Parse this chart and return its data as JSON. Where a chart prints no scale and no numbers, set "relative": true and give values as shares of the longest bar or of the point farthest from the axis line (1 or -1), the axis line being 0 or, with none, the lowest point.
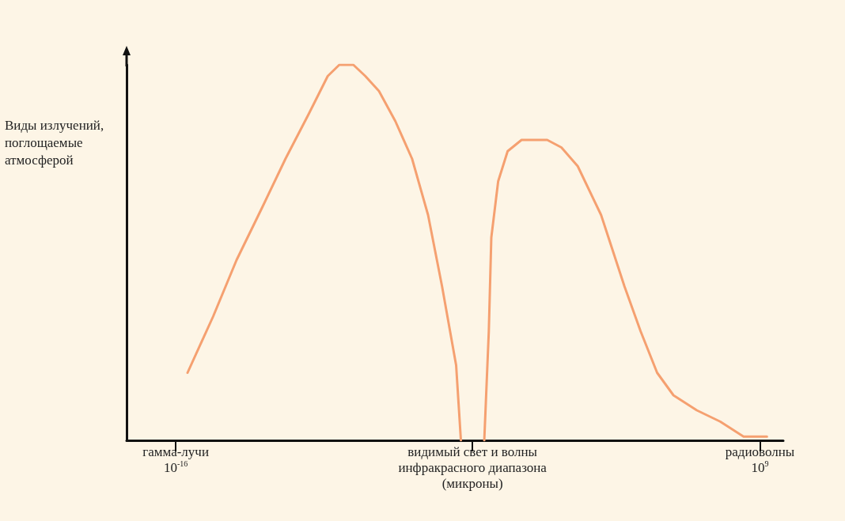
{
  "chart_data": {
    "type": "line",
    "relative": true,
    "log": "x",
    "ylabel": "Виды излучений, поглощаемые атмосферой",
    "xlim": [
      7.9e-19,
      10000000000.0
    ],
    "xticks": [
      {
        "value": 1e-16,
        "label": "10$^{-16}$"
      },
      {
        "value": 0.0005,
        "label": null
      },
      {
        "value": 1000000000.0,
        "label": "10$^{9}$"
      }
    ],
    "annotations": [
      "гамма-лучи",
      "видимый свет и волны\nинфракрасного диапазона\n(микроны)",
      "радиоволны"
    ],
    "x": [
      3.2e-16,
      4e-15,
      4e-14,
      5e-13,
      5e-12,
      5e-11,
      3.2e-10,
      1e-09,
      4e-09,
      1.3e-08,
      5e-08,
      2.5e-07,
      1.3e-06,
      6.3e-06,
      2.5e-05,
      0.0001,
      0.00016,
      0.0005,
      0.0016,
      0.0025,
      0.0032,
      0.0063,
      0.016,
      0.063,
      0.79,
      3.2,
      16,
      160,
      1600,
      7900,
      40000,
      200000,
      2000000,
      20000000,
      200000000,
      2000000000
    ],
    "series": [
      {
        "color": "#f5a070",
        "values": [
          0.18,
          0.33,
          0.48,
          0.62,
          0.75,
          0.87,
          0.97,
          1.0,
          1.0,
          0.97,
          0.93,
          0.85,
          0.75,
          0.6,
          0.41,
          0.2,
          0,
          null,
          0,
          0.29,
          0.54,
          0.69,
          0.77,
          0.8,
          0.8,
          0.78,
          0.73,
          0.6,
          0.41,
          0.29,
          0.18,
          0.12,
          0.08,
          0.05,
          0.01,
          0.01
        ]
      }
    ],
    "grid": false,
    "marker": "none",
    "line_style": "solid"
  }
}
